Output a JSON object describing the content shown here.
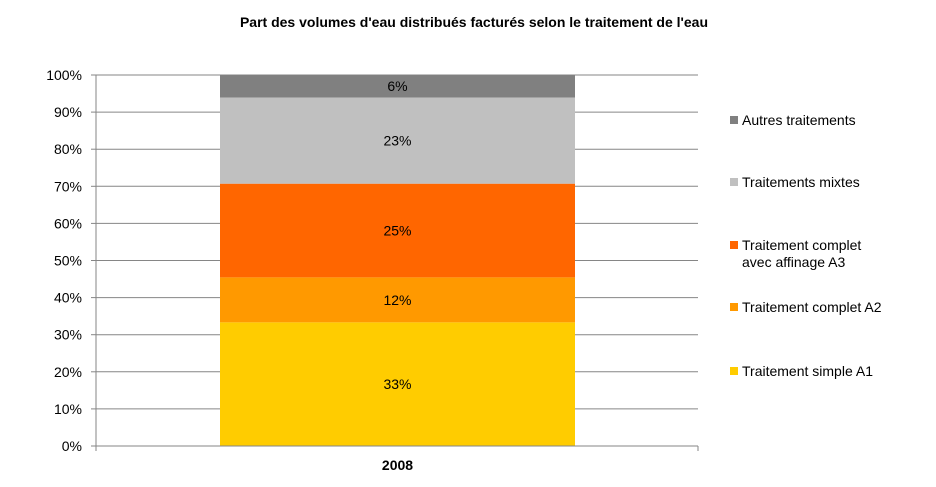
{
  "chart_data": {
    "type": "bar",
    "stacked": true,
    "orientation": "vertical",
    "title": "Part des volumes d'eau distribués facturés selon le traitement de l'eau",
    "xlabel": "",
    "ylabel": "",
    "categories": [
      "2008"
    ],
    "ylim": [
      0,
      100
    ],
    "yticks": [
      "0%",
      "10%",
      "20%",
      "30%",
      "40%",
      "50%",
      "60%",
      "70%",
      "80%",
      "90%",
      "100%"
    ],
    "grid": true,
    "legend_position": "right",
    "series": [
      {
        "name": "Traitement simple A1",
        "values": [
          33
        ],
        "label": "33%",
        "color": "#FFCC00"
      },
      {
        "name": "Traitement complet A2",
        "values": [
          12
        ],
        "label": "12%",
        "color": "#FF9900"
      },
      {
        "name_lines": [
          "Traitement complet",
          "avec affinage A3"
        ],
        "values": [
          25
        ],
        "label": "25%",
        "color": "#FF6600"
      },
      {
        "name": "Traitements mixtes",
        "values": [
          23
        ],
        "label": "23%",
        "color": "#C0C0C0"
      },
      {
        "name": "Autres traitements",
        "values": [
          6
        ],
        "label": "6%",
        "color": "#808080"
      }
    ],
    "legend_order": [
      4,
      3,
      2,
      1,
      0
    ]
  }
}
